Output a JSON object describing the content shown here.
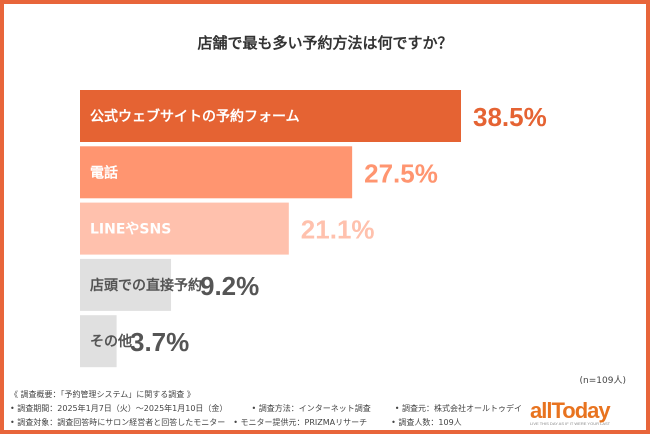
{
  "chart_data": {
    "type": "bar",
    "orientation": "horizontal",
    "title": "店舗で最も多い予約方法は何ですか？",
    "categories": [
      "公式ウェブサイトの予約フォーム",
      "電話",
      "LINEやSNS",
      "店頭での直接予約",
      "その他"
    ],
    "values": [
      38.5,
      27.5,
      21.1,
      9.2,
      3.7
    ],
    "value_labels": [
      "38.5%",
      "27.5%",
      "21.1%",
      "9.2%",
      "3.7%"
    ],
    "bar_colors": [
      "#e56333",
      "#ff9570",
      "#ffc1ad",
      "#e0e0e0",
      "#e0e0e0"
    ],
    "label_colors": [
      "#ffffff",
      "#ffffff",
      "#ffffff",
      "#555555",
      "#555555"
    ],
    "value_colors": [
      "#e56333",
      "#ff9570",
      "#ffc1ad",
      "#555555",
      "#555555"
    ],
    "xlim": [
      0,
      40
    ],
    "grid": false
  },
  "sample": "(n=109人)",
  "notes": {
    "heading": "《 調査概要：「予約管理システム」に関する調査 》",
    "period": "• 調査期間：2025年1月7日（火）～2025年1月10日（金）",
    "method": "• 調査方法：インターネット調査",
    "organizer": "• 調査元：株式会社オールトゥデイ",
    "target": "• 調査対象：調査回答時にサロン経営者と回答したモニター",
    "provider": "• モニター提供元：PRIZMAリサーチ",
    "count": "• 調査人数：109人"
  },
  "logo": {
    "text": "allToday",
    "tagline": "LIVE THIS DAY AS IF IT WERE YOUR LAST"
  },
  "frame_color": "#e8653a"
}
